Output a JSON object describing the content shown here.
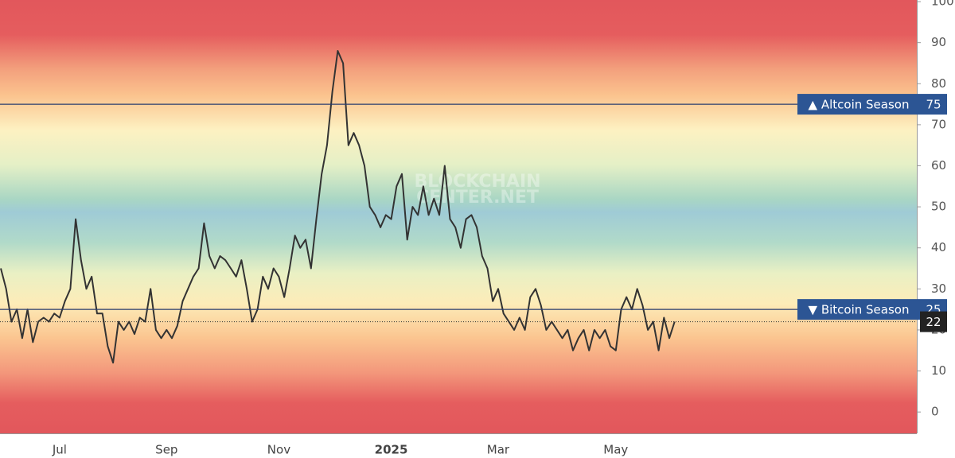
{
  "chart_data": {
    "type": "line",
    "watermark": [
      "BLOCKCHAIN",
      "CENTER.NET"
    ],
    "categories": [
      null,
      null,
      null,
      null,
      null,
      null,
      null,
      null,
      null,
      null,
      null,
      "Jul",
      null,
      null,
      null,
      null,
      null,
      null,
      null,
      null,
      null,
      null,
      null,
      null,
      null,
      null,
      null,
      null,
      null,
      null,
      null,
      "Sep",
      null,
      null,
      null,
      null,
      null,
      null,
      null,
      null,
      null,
      null,
      null,
      null,
      null,
      null,
      null,
      null,
      null,
      null,
      null,
      null,
      "Nov",
      null,
      null,
      null,
      null,
      null,
      null,
      null,
      null,
      null,
      null,
      null,
      null,
      null,
      null,
      null,
      null,
      null,
      null,
      null,
      null,
      "2025",
      null,
      null,
      null,
      null,
      null,
      null,
      null,
      null,
      null,
      null,
      null,
      null,
      null,
      null,
      null,
      null,
      null,
      null,
      null,
      "Mar",
      null,
      null,
      null,
      null,
      null,
      null,
      null,
      null,
      null,
      null,
      null,
      null,
      null,
      null,
      null,
      null,
      null,
      null,
      null,
      null,
      null,
      "May",
      null,
      null,
      null,
      null,
      null,
      null,
      null,
      null,
      null,
      null,
      null
    ],
    "series": [
      {
        "color": "#333333",
        "values": [
          35,
          30,
          22,
          25,
          18,
          25,
          17,
          22,
          23,
          22,
          24,
          23,
          27,
          30,
          47,
          37,
          30,
          33,
          24,
          24,
          16,
          12,
          22,
          20,
          22,
          19,
          23,
          22,
          30,
          20,
          18,
          20,
          18,
          21,
          27,
          30,
          33,
          35,
          46,
          38,
          35,
          38,
          37,
          35,
          33,
          37,
          30,
          22,
          25,
          33,
          30,
          35,
          33,
          28,
          35,
          43,
          40,
          42,
          35,
          47,
          58,
          65,
          78,
          88,
          85,
          65,
          68,
          65,
          60,
          50,
          48,
          45,
          48,
          47,
          55,
          58,
          42,
          50,
          48,
          55,
          48,
          52,
          48,
          60,
          47,
          45,
          40,
          47,
          48,
          45,
          38,
          35,
          27,
          30,
          24,
          22,
          20,
          23,
          20,
          28,
          30,
          26,
          20,
          22,
          20,
          18,
          20,
          15,
          18,
          20,
          15,
          20,
          18,
          20,
          16,
          15,
          25,
          28,
          25,
          30,
          26,
          20,
          22,
          15,
          23,
          18,
          22
        ]
      }
    ],
    "ylim": [
      -5.2,
      100.4
    ],
    "yticks": [
      0,
      10,
      20,
      30,
      40,
      50,
      60,
      70,
      80,
      90,
      100
    ],
    "levels": [
      {
        "label": "▲ Altcoin Season",
        "value": 75
      },
      {
        "label": "▼ Bitcoin Season",
        "value": 25
      }
    ],
    "current": 22
  }
}
